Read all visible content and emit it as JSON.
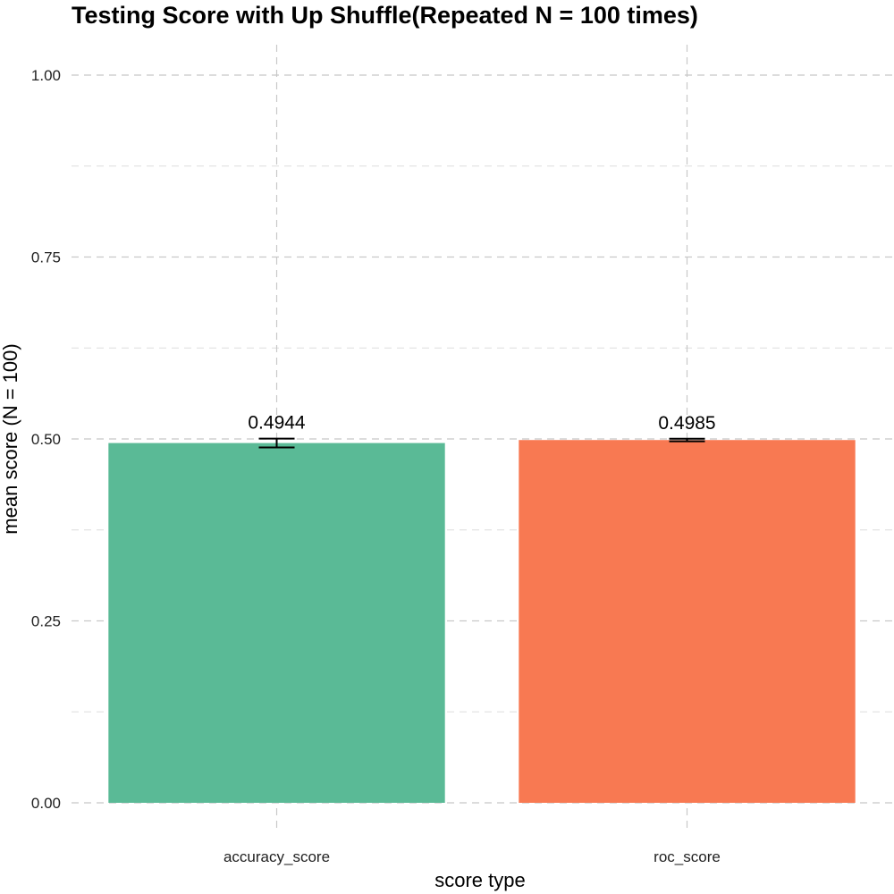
{
  "chart_data": {
    "type": "bar",
    "title": "Testing Score with Up Shuffle(Repeated N = 100 times)",
    "xlabel": "score type",
    "ylabel": "mean score (N = 100)",
    "categories": [
      "accuracy_score",
      "roc_score"
    ],
    "values": [
      0.4944,
      0.4985
    ],
    "value_labels": [
      "0.4944",
      "0.4985"
    ],
    "error_low": [
      0.4884,
      0.4967
    ],
    "error_high": [
      0.5004,
      0.5003
    ],
    "colors": [
      "#5aba96",
      "#f87952"
    ],
    "ylim": [
      0,
      1
    ],
    "yticks": [
      0,
      0.25,
      0.5,
      0.75,
      1
    ],
    "ytick_labels": [
      "0.00",
      "0.25",
      "0.50",
      "0.75",
      "1.00"
    ],
    "grid": true,
    "legend": "none"
  }
}
